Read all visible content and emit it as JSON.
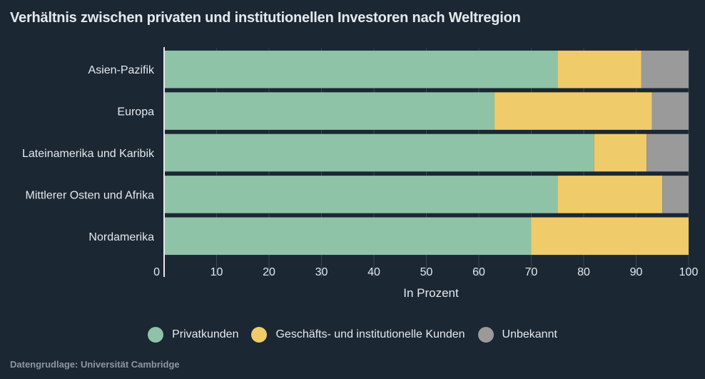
{
  "title": "Verhältnis zwischen privaten und institutionellen Investoren nach Weltregion",
  "source": "Datengrudlage: Universität Cambridge",
  "colors": {
    "background": "#1b2733",
    "private": "#8fc3a7",
    "institutional": "#f0cb69",
    "unknown": "#9a9a9a",
    "text": "#e6e9ec"
  },
  "chart_data": {
    "type": "bar",
    "orientation": "horizontal",
    "stacked": true,
    "xlabel": "In Prozent",
    "xlim": [
      0,
      100
    ],
    "xticks": [
      0,
      10,
      20,
      30,
      40,
      50,
      60,
      70,
      80,
      90,
      100
    ],
    "grid": true,
    "legend_position": "bottom",
    "categories": [
      "Asien-Pazifik",
      "Europa",
      "Lateinamerika und Karibik",
      "Mittlerer Osten und Afrika",
      "Nordamerika"
    ],
    "series": [
      {
        "name": "Privatkunden",
        "color": "#8fc3a7",
        "values": [
          75,
          63,
          82,
          75,
          70
        ]
      },
      {
        "name": "Geschäfts- und institutionelle Kunden",
        "color": "#f0cb69",
        "values": [
          16,
          30,
          10,
          20,
          30
        ]
      },
      {
        "name": "Unbekannt",
        "color": "#9a9a9a",
        "values": [
          9,
          7,
          8,
          5,
          0
        ]
      }
    ]
  }
}
